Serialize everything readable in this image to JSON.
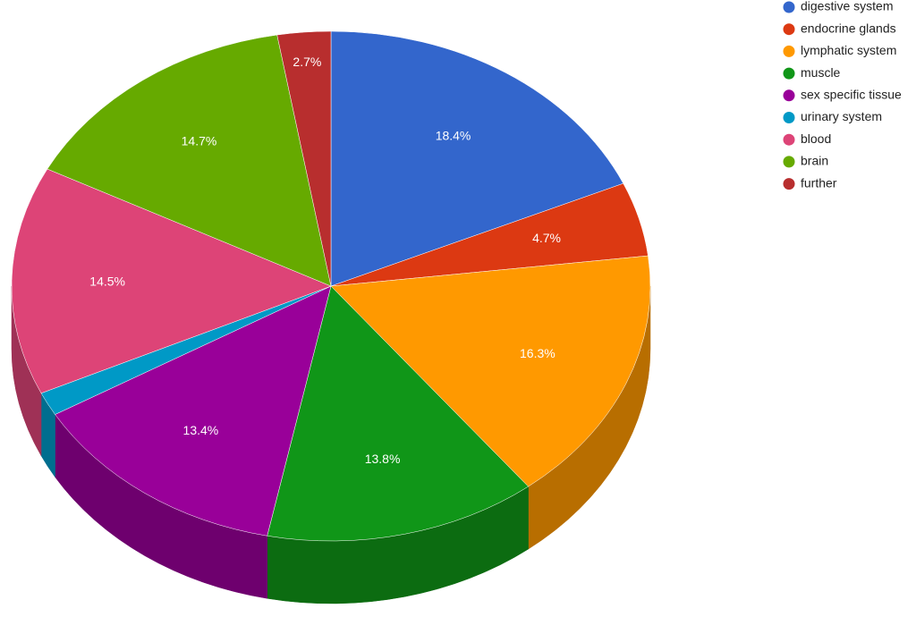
{
  "chart_data": {
    "type": "pie3d",
    "categories": [
      "digestive system",
      "endocrine glands",
      "lymphatic system",
      "muscle",
      "sex specific tissue",
      "urinary system",
      "blood",
      "brain",
      "further"
    ],
    "values": [
      18.4,
      4.7,
      16.3,
      13.8,
      13.4,
      1.5,
      14.5,
      14.7,
      2.7
    ],
    "value_labels": [
      "18.4%",
      "4.7%",
      "16.3%",
      "13.8%",
      "13.4%",
      null,
      "14.5%",
      "14.7%",
      "2.7%"
    ],
    "colors": [
      "#3366cc",
      "#dc3912",
      "#ff9900",
      "#109618",
      "#990099",
      "#0099c6",
      "#dd4477",
      "#66aa00",
      "#b82e2e"
    ],
    "legend": "right"
  }
}
